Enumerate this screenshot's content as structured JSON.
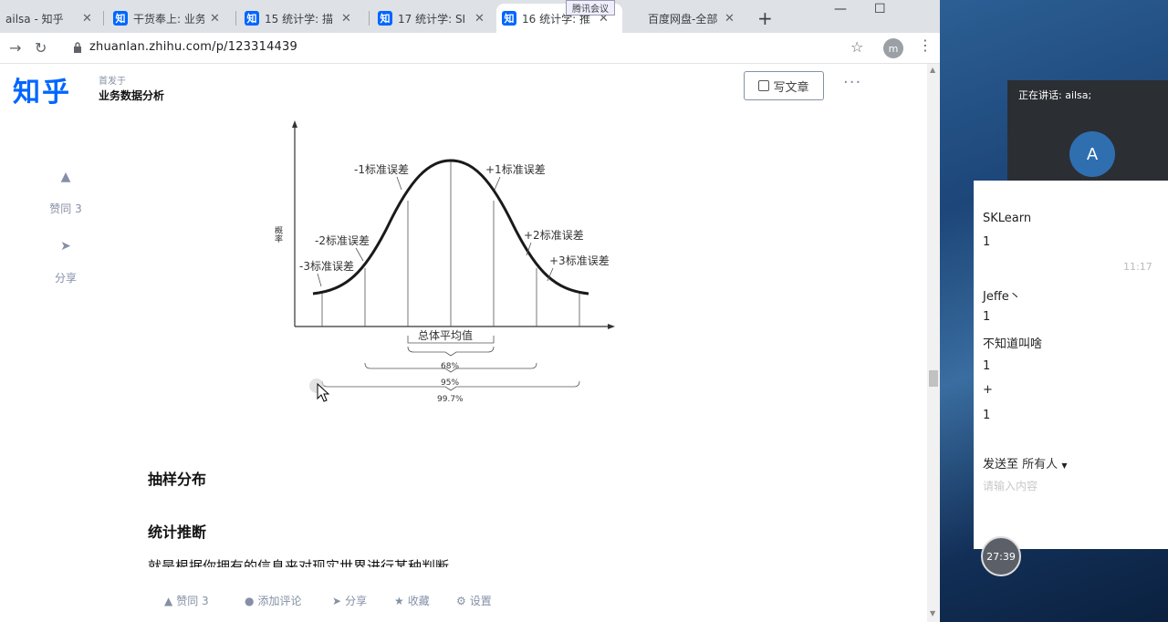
{
  "tabs": [
    {
      "title": "ailsa - 知乎",
      "fav": ""
    },
    {
      "title": "干货奉上: 业务",
      "fav": "知"
    },
    {
      "title": "15 统计学: 描",
      "fav": "知"
    },
    {
      "title": "17 统计学: SI",
      "fav": "知"
    },
    {
      "title": "16 统计学: 推",
      "fav": "知"
    },
    {
      "title": "百度网盘-全部",
      "fav": ""
    }
  ],
  "meeting_overlay_label": "腾讯会议",
  "new_tab": "+",
  "window_controls": {
    "minimize": "—",
    "maximize": "☐"
  },
  "address": {
    "url": "zhuanlan.zhihu.com/p/123314439",
    "profile_initial": "m"
  },
  "header": {
    "logo": "知乎",
    "publication_prefix": "首发于",
    "publication_name": "业务数据分析",
    "write_button": "写文章",
    "more": "···"
  },
  "side_actions": {
    "vote": "赞同 3",
    "share": "分享"
  },
  "chart_data": {
    "type": "diagram",
    "y_label": "概率",
    "x_center_label": "总体平均值",
    "left_labels": [
      "-1标准误差",
      "-2标准误差",
      "-3标准误差"
    ],
    "right_labels": [
      "+1标准误差",
      "+2标准误差",
      "+3标准误差"
    ],
    "ranges": [
      "68%",
      "95%",
      "99.7%"
    ]
  },
  "sections": {
    "heading1": "抽样分布",
    "heading2": "统计推断",
    "body": "就是根据你拥有的信息来对现实世界进行某种判断"
  },
  "bottom_bar": {
    "vote": "赞同 3",
    "comment": "添加评论",
    "share": "分享",
    "collect": "收藏",
    "settings": "设置"
  },
  "meeting": {
    "speaking": "正在讲话: ailsa;",
    "avatar_letter": "A",
    "speaker_name": "ailsa",
    "chat": [
      {
        "sender": "SKLearn",
        "msg": "1"
      },
      {
        "sender": "Jeffe丶",
        "msg": "1"
      },
      {
        "sender": "",
        "msg": "不知道叫啥"
      },
      {
        "sender": "",
        "msg": "1"
      },
      {
        "sender": "",
        "msg": "+"
      },
      {
        "sender": "",
        "msg": "1"
      }
    ],
    "time": "11:17",
    "send_to_prefix": "发送至",
    "send_to_target": "所有人",
    "input_placeholder": "请输入内容",
    "timer": "27:39"
  }
}
